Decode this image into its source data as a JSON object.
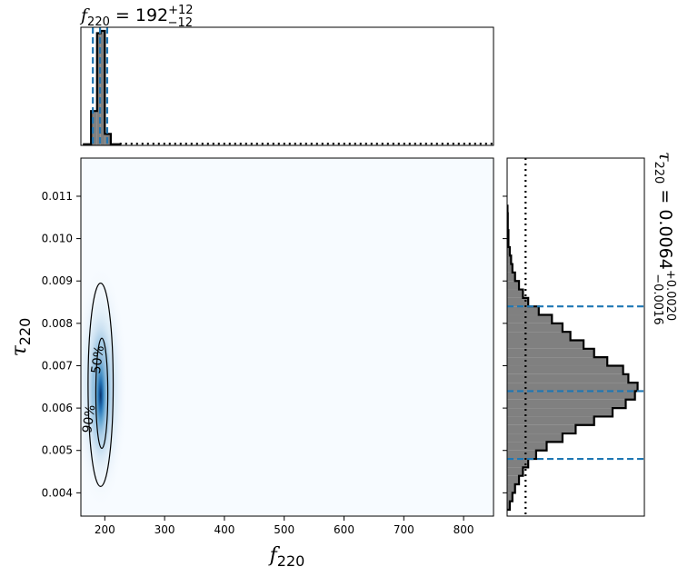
{
  "chart_data": [
    {
      "panel": "marginal-f220",
      "type": "histogram",
      "title_prefix": "f",
      "title_sub": "220",
      "title_eq": " = 192",
      "title_sup": "+12",
      "title_inf": "−12",
      "median": 192,
      "credible_lines": [
        180,
        192,
        204
      ],
      "bins": [
        {
          "x0": 165,
          "x1": 177,
          "height": 0.01
        },
        {
          "x0": 177,
          "x1": 187,
          "height": 0.3
        },
        {
          "x0": 187,
          "x1": 193,
          "height": 0.98
        },
        {
          "x0": 193,
          "x1": 200,
          "height": 1.0
        },
        {
          "x0": 200,
          "x1": 210,
          "height": 0.1
        },
        {
          "x0": 210,
          "x1": 225,
          "height": 0.01
        }
      ],
      "prior_level": 0.015,
      "xlim": [
        160,
        850
      ]
    },
    {
      "panel": "joint",
      "type": "heatmap",
      "xlabel": "f",
      "xlabel_sub": "220",
      "ylabel": "τ",
      "ylabel_sub": "220",
      "xlim": [
        160,
        850
      ],
      "ylim": [
        0.00345,
        0.0119
      ],
      "xticks": [
        "200",
        "300",
        "400",
        "500",
        "600",
        "700",
        "800"
      ],
      "xtick_values": [
        200,
        300,
        400,
        500,
        600,
        700,
        800
      ],
      "yticks": [
        "0.004",
        "0.005",
        "0.006",
        "0.007",
        "0.008",
        "0.009",
        "0.010",
        "0.011"
      ],
      "ytick_values": [
        0.004,
        0.005,
        0.006,
        0.007,
        0.008,
        0.009,
        0.01,
        0.011
      ],
      "density_peak": {
        "x": 193,
        "y": 0.0063
      },
      "contours": [
        {
          "level": "90%",
          "cx": 193,
          "cy": 0.00655,
          "rx": 21,
          "ry": 0.0024
        },
        {
          "level": "50%",
          "cx": 195,
          "cy": 0.00635,
          "rx": 10,
          "ry": 0.0013
        }
      ],
      "contour_labels": [
        "90%",
        "50%"
      ]
    },
    {
      "panel": "marginal-tau220",
      "type": "histogram",
      "orientation": "horizontal",
      "title_prefix": "τ",
      "title_sub": "220",
      "title_eq": " = 0.0064",
      "title_sup": "+0.0020",
      "title_inf": "−0.0016",
      "median": 0.0064,
      "credible_lines": [
        0.0048,
        0.0064,
        0.0084
      ],
      "prior_level": 0.14,
      "bins_y": [
        0.0036,
        0.0038,
        0.004,
        0.0042,
        0.0044,
        0.0046,
        0.0048,
        0.005,
        0.0052,
        0.0054,
        0.0056,
        0.0058,
        0.006,
        0.0062,
        0.0064,
        0.0066,
        0.0068,
        0.007,
        0.0072,
        0.0074,
        0.0076,
        0.0078,
        0.008,
        0.0082,
        0.0084,
        0.0086,
        0.0088,
        0.009,
        0.0092,
        0.0094,
        0.0096,
        0.0098,
        0.01,
        0.0102,
        0.0104,
        0.0106
      ],
      "bins_w": [
        0.02,
        0.04,
        0.06,
        0.09,
        0.12,
        0.16,
        0.22,
        0.3,
        0.42,
        0.52,
        0.66,
        0.8,
        0.9,
        0.97,
        0.99,
        0.92,
        0.88,
        0.76,
        0.66,
        0.58,
        0.48,
        0.42,
        0.34,
        0.24,
        0.16,
        0.12,
        0.09,
        0.06,
        0.04,
        0.03,
        0.02,
        0.01,
        0.01,
        0.005,
        0.005,
        0.003
      ],
      "ylim": [
        0.00345,
        0.0119
      ]
    }
  ]
}
